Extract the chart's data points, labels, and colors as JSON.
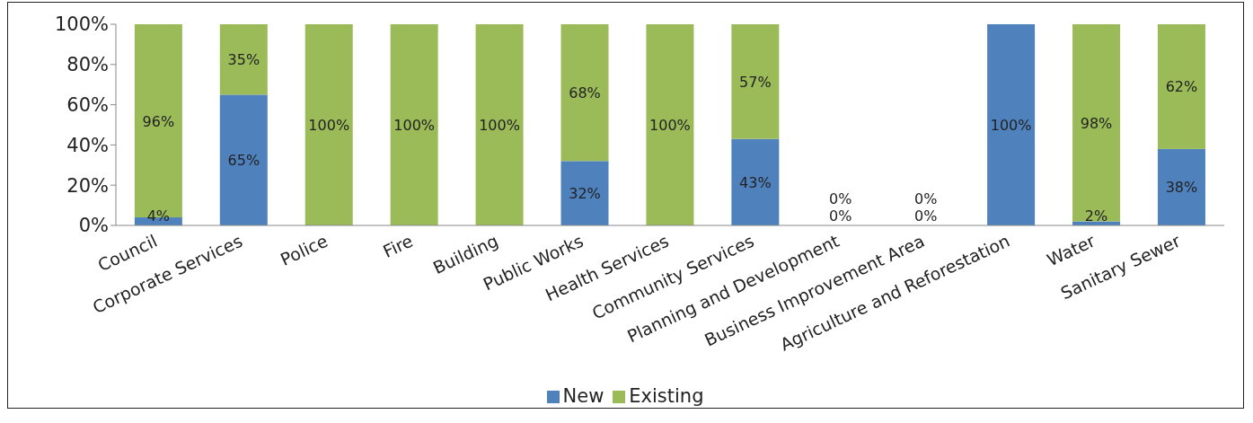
{
  "chart_data": {
    "type": "bar",
    "stacked": true,
    "categories": [
      "Council",
      "Corporate Services",
      "Police",
      "Fire",
      "Building",
      "Public Works",
      "Health Services",
      "Community Services",
      "Planning and Development",
      "Business Improvement Area",
      "Agriculture and Reforestation",
      "Water",
      "Sanitary Sewer"
    ],
    "series": [
      {
        "name": "New",
        "color": "#4f81bd",
        "values": [
          4,
          65,
          0,
          0,
          0,
          32,
          0,
          43,
          0,
          0,
          100,
          2,
          38
        ],
        "value_labels": [
          "4%",
          "65%",
          null,
          null,
          null,
          "32%",
          null,
          "43%",
          "0%",
          "0%",
          "100%",
          "2%",
          "38%"
        ]
      },
      {
        "name": "Existing",
        "color": "#9bbb59",
        "values": [
          96,
          35,
          100,
          100,
          100,
          68,
          100,
          57,
          0,
          0,
          0,
          98,
          62
        ],
        "value_labels": [
          "96%",
          "35%",
          "100%",
          "100%",
          "100%",
          "68%",
          "100%",
          "57%",
          "0%",
          "0%",
          null,
          "98%",
          "62%"
        ]
      }
    ],
    "ylim": [
      0,
      100
    ],
    "yticks": [
      {
        "value": 0,
        "label": "0%"
      },
      {
        "value": 20,
        "label": "20%"
      },
      {
        "value": 40,
        "label": "40%"
      },
      {
        "value": 60,
        "label": "60%"
      },
      {
        "value": 80,
        "label": "80%"
      },
      {
        "value": 100,
        "label": "100%"
      }
    ],
    "legend": "bottom",
    "grid": false
  }
}
